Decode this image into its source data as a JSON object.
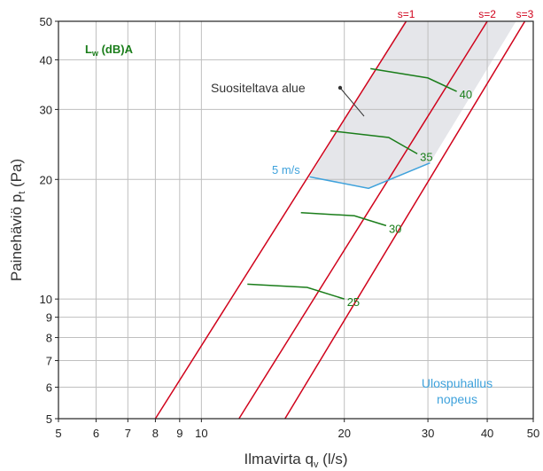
{
  "chart_data": {
    "type": "line",
    "scale": "log-log",
    "xlabel": "Ilmavirta q",
    "xlabel_sub": "v",
    "xlabel_unit": " (l/s)",
    "ylabel": "Painehäviö p",
    "ylabel_sub": "t",
    "ylabel_unit": " (Pa)",
    "xlim": [
      5,
      50
    ],
    "ylim": [
      5,
      50
    ],
    "x_ticks": [
      5,
      6,
      7,
      8,
      9,
      10,
      20,
      30,
      40,
      50
    ],
    "y_ticks": [
      5,
      6,
      7,
      8,
      9,
      10,
      20,
      30,
      40,
      50
    ],
    "grid": true,
    "lw_title": "L",
    "lw_title_sub": "w",
    "lw_title_rest": " (dB)A",
    "recommended_area_label": "Suositeltava alue",
    "velocity_label": "5 m/s",
    "footer_label_line1": "Ulospuhallus",
    "footer_label_line2": "nopeus",
    "colors": {
      "s_lines": "#d0021b",
      "lw_lines": "#1a7d1a",
      "velocity": "#3fa2dc",
      "area": "#e5e6ea",
      "grid": "#bfbfbf"
    },
    "s_lines": [
      {
        "label": "s=1",
        "points": [
          [
            8.0,
            5
          ],
          [
            27.0,
            50
          ]
        ]
      },
      {
        "label": "s=2",
        "points": [
          [
            12.0,
            5
          ],
          [
            40.0,
            50
          ]
        ]
      },
      {
        "label": "s=3",
        "points": [
          [
            15.0,
            5
          ],
          [
            48.0,
            50
          ]
        ]
      }
    ],
    "lw_lines": [
      {
        "label": "25",
        "points": [
          [
            12.5,
            10.9
          ],
          [
            16.7,
            10.7
          ],
          [
            20.0,
            10.0
          ]
        ]
      },
      {
        "label": "30",
        "points": [
          [
            16.2,
            16.5
          ],
          [
            21.0,
            16.2
          ],
          [
            24.5,
            15.3
          ]
        ]
      },
      {
        "label": "35",
        "points": [
          [
            18.7,
            26.5
          ],
          [
            24.8,
            25.5
          ],
          [
            28.5,
            23.2
          ]
        ]
      },
      {
        "label": "40",
        "points": [
          [
            22.7,
            38.0
          ],
          [
            30.0,
            36.0
          ],
          [
            34.5,
            33.3
          ]
        ]
      }
    ],
    "velocity_line": [
      [
        16.9,
        20.3
      ],
      [
        22.5,
        19.0
      ],
      [
        30.3,
        22.0
      ]
    ],
    "recommended_area": [
      [
        16.9,
        20.3
      ],
      [
        22.5,
        19.0
      ],
      [
        30.3,
        22.0
      ],
      [
        46.0,
        50.0
      ],
      [
        26.8,
        50.0
      ]
    ]
  }
}
